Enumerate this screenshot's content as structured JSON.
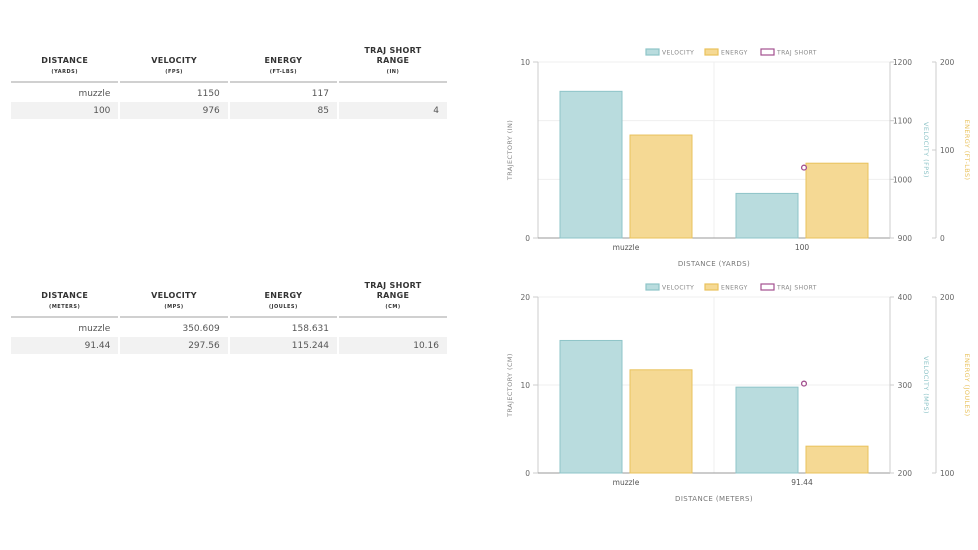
{
  "table_imperial": {
    "headers": [
      {
        "title": "DISTANCE",
        "unit": "(YARDS)"
      },
      {
        "title": "VELOCITY",
        "unit": "(FPS)"
      },
      {
        "title": "ENERGY",
        "unit": "(FT-LBS)"
      },
      {
        "title": "TRAJ SHORT RANGE",
        "unit": "(IN)"
      }
    ],
    "rows": [
      [
        "muzzle",
        "1150",
        "117",
        ""
      ],
      [
        "100",
        "976",
        "85",
        "4"
      ]
    ]
  },
  "table_metric": {
    "headers": [
      {
        "title": "DISTANCE",
        "unit": "(METERS)"
      },
      {
        "title": "VELOCITY",
        "unit": "(MPS)"
      },
      {
        "title": "ENERGY",
        "unit": "(JOULES)"
      },
      {
        "title": "TRAJ SHORT RANGE",
        "unit": "(CM)"
      }
    ],
    "rows": [
      [
        "muzzle",
        "350.609",
        "158.631",
        ""
      ],
      [
        "91.44",
        "297.56",
        "115.244",
        "10.16"
      ]
    ]
  },
  "colors": {
    "velocity": "#b9dcde",
    "velocity_stroke": "#8ec4c8",
    "energy": "#f5d994",
    "energy_stroke": "#e9c25c",
    "traj": "#a3508f",
    "axis_text": "#666666",
    "grid": "#e6e6e6"
  },
  "chart_data": [
    {
      "type": "bar",
      "categories": [
        "muzzle",
        "100"
      ],
      "series": [
        {
          "name": "VELOCITY",
          "axis": "velocity",
          "values": [
            1150,
            976
          ]
        },
        {
          "name": "ENERGY",
          "axis": "energy",
          "values": [
            117,
            85
          ]
        },
        {
          "name": "TRAJ SHORT",
          "axis": "traj",
          "kind": "point",
          "values": [
            null,
            4
          ]
        }
      ],
      "legend": [
        "VELOCITY",
        "ENERGY",
        "TRAJ SHORT"
      ],
      "xlabel": "DISTANCE (YARDS)",
      "ylabel_left": "TRAJECTORY (IN)",
      "ylabel_velocity": "VELOCITY (FPS)",
      "ylabel_energy": "ENERGY (FT-LBS)",
      "traj_axis": {
        "range": [
          0,
          10
        ],
        "ticks": [
          "0",
          "10"
        ]
      },
      "velocity_axis": {
        "range": [
          900,
          1200
        ],
        "ticks": [
          "900",
          "1000",
          "1100",
          "1200"
        ]
      },
      "energy_axis": {
        "range": [
          0,
          200
        ],
        "ticks": [
          "0",
          "100",
          "200"
        ]
      }
    },
    {
      "type": "bar",
      "categories": [
        "muzzle",
        "91.44"
      ],
      "series": [
        {
          "name": "VELOCITY",
          "axis": "velocity",
          "values": [
            350.609,
            297.56
          ]
        },
        {
          "name": "ENERGY",
          "axis": "energy",
          "values": [
            158.631,
            115.244
          ]
        },
        {
          "name": "TRAJ SHORT",
          "axis": "traj",
          "kind": "point",
          "values": [
            null,
            10.16
          ]
        }
      ],
      "legend": [
        "VELOCITY",
        "ENERGY",
        "TRAJ SHORT"
      ],
      "xlabel": "DISTANCE (METERS)",
      "ylabel_left": "TRAJECTORY (CM)",
      "ylabel_velocity": "VELOCITY (MPS)",
      "ylabel_energy": "ENERGY (JOULES)",
      "traj_axis": {
        "range": [
          0,
          20
        ],
        "ticks": [
          "0",
          "10",
          "20"
        ]
      },
      "velocity_axis": {
        "range": [
          200,
          400
        ],
        "ticks": [
          "200",
          "300",
          "400"
        ]
      },
      "energy_axis": {
        "range": [
          100,
          200
        ],
        "ticks": [
          "100",
          "200"
        ]
      }
    }
  ]
}
